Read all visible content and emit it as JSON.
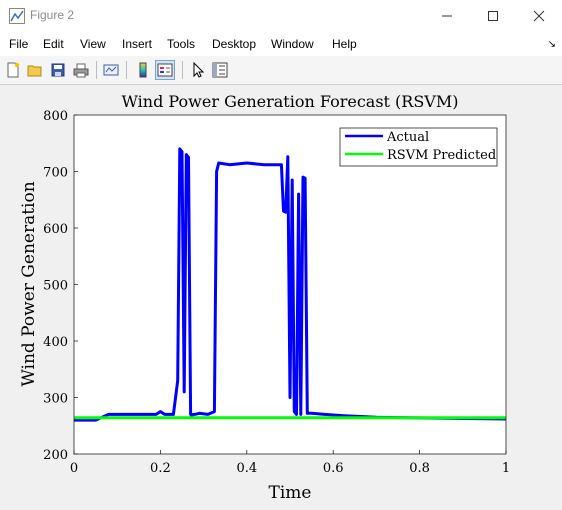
{
  "window": {
    "title": "Figure 2"
  },
  "menu": [
    "File",
    "Edit",
    "View",
    "Insert",
    "Tools",
    "Desktop",
    "Window",
    "Help"
  ],
  "toolbar_icons": [
    "new-figure-icon",
    "open-file-icon",
    "save-icon",
    "print-icon",
    "link-plot-icon",
    "insert-colorbar-icon",
    "insert-legend-icon",
    "edit-plot-arrow-icon",
    "property-inspector-icon"
  ],
  "colors": {
    "actual": "#0000ff",
    "predicted": "#00ff00"
  },
  "chart_data": {
    "type": "line",
    "title": "Wind Power Generation Forecast (RSVM)",
    "xlabel": "Time",
    "ylabel": "Wind Power Generation",
    "xlim": [
      0,
      1
    ],
    "ylim": [
      200,
      800
    ],
    "xticks": [
      "0",
      "0.2",
      "0.4",
      "0.6",
      "0.8",
      "1"
    ],
    "yticks": [
      "200",
      "300",
      "400",
      "500",
      "600",
      "700",
      "800"
    ],
    "legend_position": "top-right",
    "grid": false,
    "series": [
      {
        "name": "Actual",
        "x": [
          0.0,
          0.05,
          0.08,
          0.19,
          0.2,
          0.21,
          0.23,
          0.24,
          0.245,
          0.25,
          0.255,
          0.26,
          0.265,
          0.27,
          0.273,
          0.276,
          0.28,
          0.29,
          0.31,
          0.325,
          0.33,
          0.335,
          0.36,
          0.4,
          0.44,
          0.48,
          0.485,
          0.49,
          0.495,
          0.5,
          0.505,
          0.51,
          0.515,
          0.52,
          0.525,
          0.53,
          0.535,
          0.54,
          0.545,
          0.55,
          0.58,
          0.62,
          0.7,
          1.0
        ],
        "values": [
          260,
          260,
          270,
          270,
          275,
          270,
          270,
          330,
          740,
          735,
          310,
          730,
          725,
          270,
          268,
          270,
          270,
          272,
          270,
          275,
          700,
          715,
          712,
          715,
          712,
          712,
          630,
          628,
          726,
          300,
          685,
          275,
          270,
          660,
          270,
          690,
          688,
          272,
          272,
          272,
          270,
          268,
          265,
          262
        ]
      },
      {
        "name": "RSVM Predicted",
        "x": [
          0,
          1
        ],
        "values": [
          264,
          264
        ]
      }
    ]
  }
}
